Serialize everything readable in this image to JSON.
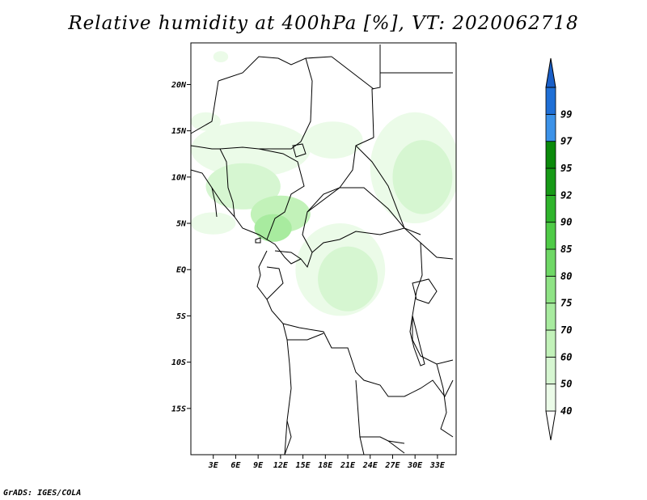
{
  "title": "Relative humidity at 400hPa [%], VT: 2020062718",
  "footer": "GrADS: IGES/COLA",
  "map": {
    "lon_range": [
      0,
      35.5
    ],
    "lat_range": [
      -20,
      24.5
    ],
    "lat_ticks": [
      {
        "value": 20,
        "label": "20N"
      },
      {
        "value": 15,
        "label": "15N"
      },
      {
        "value": 10,
        "label": "10N"
      },
      {
        "value": 5,
        "label": "5N"
      },
      {
        "value": 0,
        "label": "EQ"
      },
      {
        "value": -5,
        "label": "5S"
      },
      {
        "value": -10,
        "label": "10S"
      },
      {
        "value": -15,
        "label": "15S"
      }
    ],
    "lon_ticks": [
      {
        "value": 3,
        "label": "3E"
      },
      {
        "value": 6,
        "label": "6E"
      },
      {
        "value": 9,
        "label": "9E"
      },
      {
        "value": 12,
        "label": "12E"
      },
      {
        "value": 15,
        "label": "15E"
      },
      {
        "value": 18,
        "label": "18E"
      },
      {
        "value": 21,
        "label": "21E"
      },
      {
        "value": 24,
        "label": "24E"
      },
      {
        "value": 27,
        "label": "27E"
      },
      {
        "value": 30,
        "label": "30E"
      },
      {
        "value": 33,
        "label": "33E"
      }
    ]
  },
  "colorbar": {
    "levels": [
      {
        "label": "40",
        "color": "#ebfbe8"
      },
      {
        "label": "50",
        "color": "#d6f6d1"
      },
      {
        "label": "60",
        "color": "#c2f2b9"
      },
      {
        "label": "70",
        "color": "#a8eb9f"
      },
      {
        "label": "75",
        "color": "#8fe385"
      },
      {
        "label": "80",
        "color": "#6fd866"
      },
      {
        "label": "85",
        "color": "#4fcb47"
      },
      {
        "label": "90",
        "color": "#2fb42c"
      },
      {
        "label": "92",
        "color": "#179a17"
      },
      {
        "label": "95",
        "color": "#0b8a0b"
      },
      {
        "label": "97",
        "color": "#3c92e8"
      },
      {
        "label": "99",
        "color": "#1f6fd6"
      }
    ],
    "bottom_color": "#ffffff",
    "top_color": "#1a5fc8"
  },
  "humidity_areas": [
    {
      "level": "40",
      "lon": 8,
      "lat": 13,
      "rx": 8,
      "ry": 3
    },
    {
      "level": "50",
      "lon": 7,
      "lat": 9,
      "rx": 5,
      "ry": 2.5
    },
    {
      "level": "60",
      "lon": 12,
      "lat": 6,
      "rx": 4,
      "ry": 2
    },
    {
      "level": "70",
      "lon": 11,
      "lat": 4.5,
      "rx": 2.5,
      "ry": 1.5
    },
    {
      "level": "40",
      "lon": 20,
      "lat": 0,
      "rx": 6,
      "ry": 5
    },
    {
      "level": "50",
      "lon": 21,
      "lat": -1,
      "rx": 4,
      "ry": 3.5
    },
    {
      "level": "40",
      "lon": 30,
      "lat": 11,
      "rx": 6,
      "ry": 6
    },
    {
      "level": "50",
      "lon": 31,
      "lat": 10,
      "rx": 4,
      "ry": 4
    },
    {
      "level": "40",
      "lon": 19,
      "lat": 14,
      "rx": 4,
      "ry": 2
    },
    {
      "level": "40",
      "lon": 4,
      "lat": 23,
      "rx": 1,
      "ry": 0.6
    },
    {
      "level": "40",
      "lon": 2,
      "lat": 16,
      "rx": 2,
      "ry": 1
    },
    {
      "level": "40",
      "lon": 3,
      "lat": 5,
      "rx": 3,
      "ry": 1.2
    }
  ]
}
